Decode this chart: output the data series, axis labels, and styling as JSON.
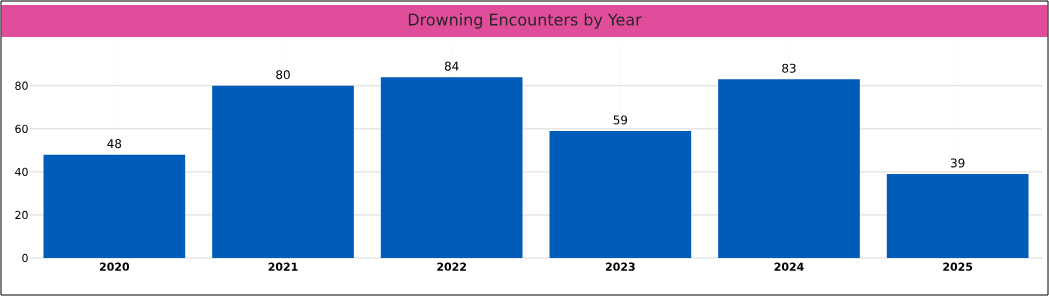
{
  "chart_data": {
    "type": "bar",
    "title": "Drowning Encounters by Year",
    "categories": [
      "2020",
      "2021",
      "2022",
      "2023",
      "2024",
      "2025"
    ],
    "values": [
      48,
      80,
      84,
      59,
      83,
      39
    ],
    "color": "#005cb9",
    "ylim": [
      0,
      98
    ],
    "yticks": [
      0,
      20,
      40,
      60,
      80
    ],
    "grid": true,
    "data_labels": true
  }
}
